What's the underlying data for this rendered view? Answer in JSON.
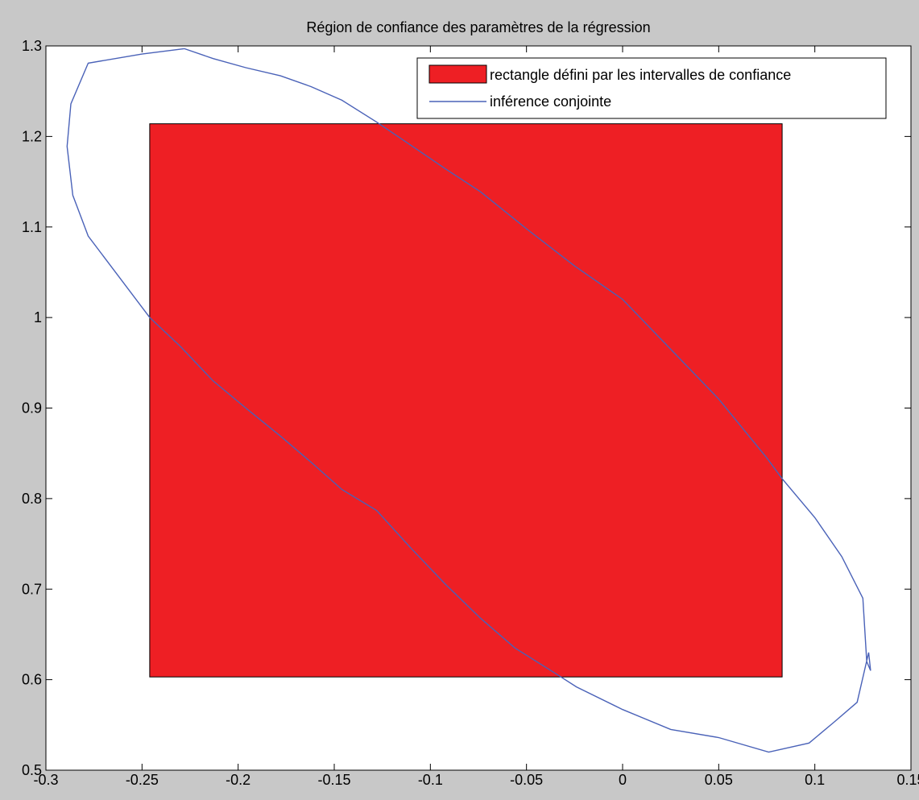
{
  "chart_data": {
    "type": "line",
    "title": "Région de confiance des paramètres de la régression",
    "xlabel": "",
    "ylabel": "",
    "xlim": [
      -0.3,
      0.15
    ],
    "ylim": [
      0.5,
      1.3
    ],
    "xticks": [
      -0.3,
      -0.25,
      -0.2,
      -0.15,
      -0.1,
      -0.05,
      0,
      0.05,
      0.1,
      0.15
    ],
    "yticks": [
      0.5,
      0.6,
      0.7,
      0.8,
      0.9,
      1,
      1.1,
      1.2,
      1.3
    ],
    "xtick_labels": [
      "-0.3",
      "-0.25",
      "-0.2",
      "-0.15",
      "-0.1",
      "-0.05",
      "0",
      "0.05",
      "0.1",
      "0.15"
    ],
    "ytick_labels": [
      "0.5",
      "0.6",
      "0.7",
      "0.8",
      "0.9",
      "1",
      "1.1",
      "1.2",
      "1.3"
    ],
    "grid": false,
    "legend_position": "top-right",
    "series": [
      {
        "name": "rectangle défini par les intervalles de confiance",
        "kind": "filled-rectangle",
        "color": "#ee1f24",
        "edge_color": "#000000",
        "x_range": [
          -0.246,
          0.083
        ],
        "y_range": [
          0.603,
          1.214
        ]
      },
      {
        "name": "inférence conjointe",
        "kind": "closed-line",
        "color": "#4a62b8",
        "x": [
          -0.228,
          -0.25,
          -0.278,
          -0.287,
          -0.289,
          -0.286,
          -0.278,
          -0.262,
          -0.246,
          -0.23,
          -0.213,
          -0.196,
          -0.178,
          -0.162,
          -0.146,
          -0.128,
          -0.11,
          -0.092,
          -0.074,
          -0.056,
          -0.035,
          -0.024,
          0,
          0.025,
          0.05,
          0.076,
          0.097,
          0.11,
          0.122,
          0.128,
          0.129,
          0.127,
          0.125,
          0.114,
          0.1,
          0.083,
          0.075,
          0.05,
          0.025,
          0,
          -0.025,
          -0.05,
          -0.074,
          -0.092,
          -0.11,
          -0.128,
          -0.146,
          -0.162,
          -0.178,
          -0.196,
          -0.213,
          -0.228
        ],
        "y": [
          1.297,
          1.291,
          1.281,
          1.236,
          1.189,
          1.135,
          1.09,
          1.045,
          1.0,
          0.968,
          0.93,
          0.9,
          0.869,
          0.84,
          0.81,
          0.787,
          0.745,
          0.705,
          0.668,
          0.635,
          0.607,
          0.592,
          0.567,
          0.545,
          0.536,
          0.52,
          0.53,
          0.553,
          0.575,
          0.63,
          0.61,
          0.62,
          0.69,
          0.736,
          0.779,
          0.822,
          0.845,
          0.91,
          0.965,
          1.02,
          1.057,
          1.098,
          1.139,
          1.164,
          1.19,
          1.216,
          1.24,
          1.255,
          1.267,
          1.276,
          1.286,
          1.297
        ]
      }
    ]
  }
}
